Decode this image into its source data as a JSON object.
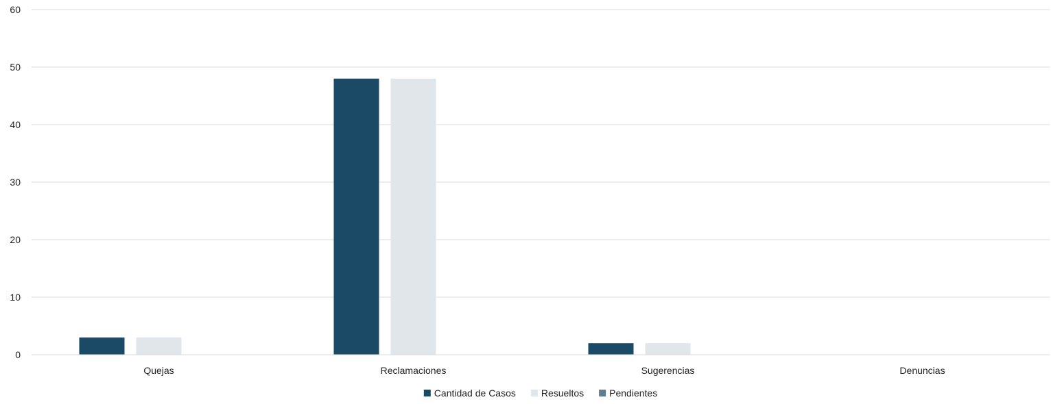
{
  "chart_data": {
    "type": "bar",
    "title": "",
    "xlabel": "",
    "ylabel": "",
    "categories": [
      "Quejas",
      "Reclamaciones",
      "Sugerencias",
      "Denuncias"
    ],
    "series": [
      {
        "name": "Cantidad de Casos",
        "values": [
          3,
          48,
          2,
          0
        ],
        "color": "#1b4a66"
      },
      {
        "name": "Resueltos",
        "values": [
          3,
          48,
          2,
          0
        ],
        "color": "#e1e6ea"
      },
      {
        "name": "Pendientes",
        "values": [
          0,
          0,
          0,
          0
        ],
        "color": "#5f7d8c"
      }
    ],
    "ylim": [
      0,
      60
    ],
    "yticks": [
      0,
      10,
      20,
      30,
      40,
      50,
      60
    ],
    "grid": true,
    "gridline_color": "#d9d9d9",
    "legend_position": "bottom"
  }
}
